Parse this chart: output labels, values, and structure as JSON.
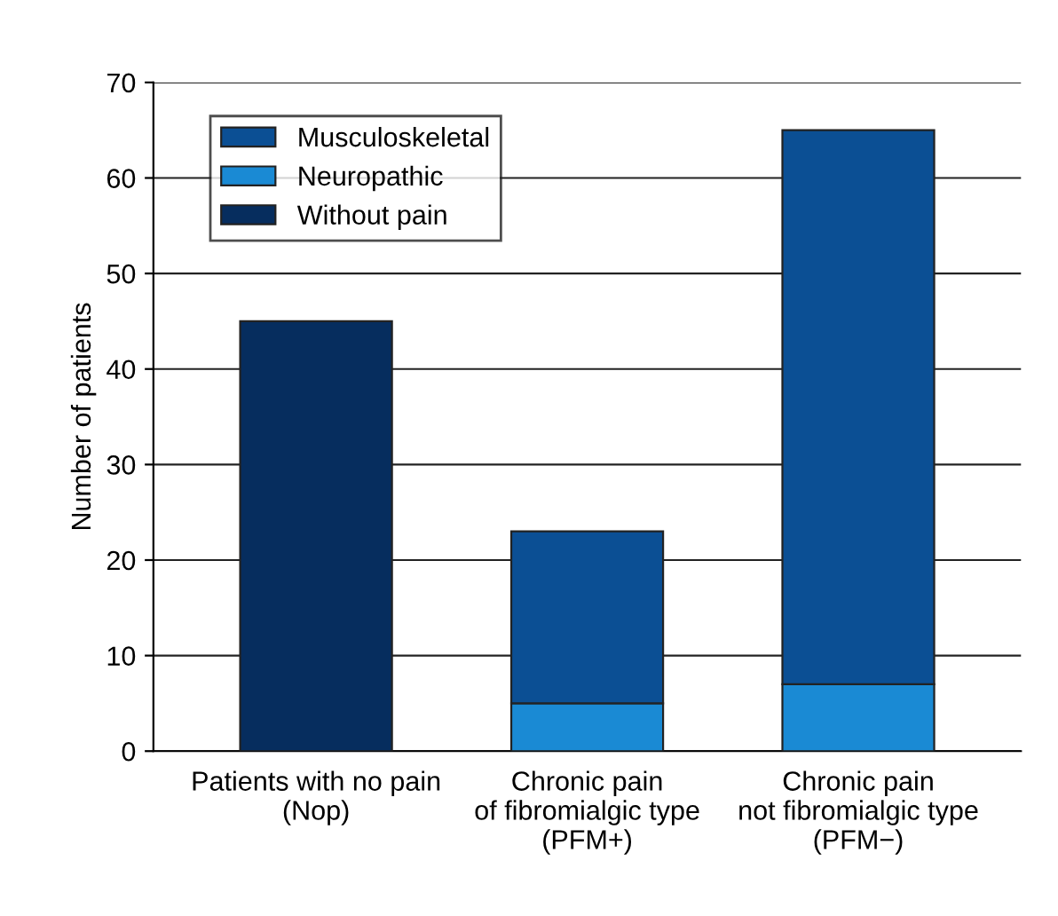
{
  "chart_data": {
    "type": "bar",
    "stacked": true,
    "ylabel": "Number of patients",
    "categories": [
      "Patients with no pain\n(Nop)",
      "Chronic pain\nof fibromialgic type\n(PFM+)",
      "Chronic pain\nnot fibromialgic type\n(PFM−)"
    ],
    "series": [
      {
        "name": "Without pain",
        "color": "#062d5e",
        "values": [
          45,
          null,
          null
        ]
      },
      {
        "name": "Neuropathic",
        "color": "#1a8ad4",
        "values": [
          null,
          5,
          7
        ]
      },
      {
        "name": "Musculoskeletal",
        "color": "#0b4f94",
        "values": [
          null,
          18,
          58
        ]
      }
    ],
    "ylim": [
      0,
      70
    ],
    "yticks": [
      0,
      10,
      20,
      30,
      40,
      50,
      60,
      70
    ],
    "grid": "y",
    "legend": "top left"
  }
}
